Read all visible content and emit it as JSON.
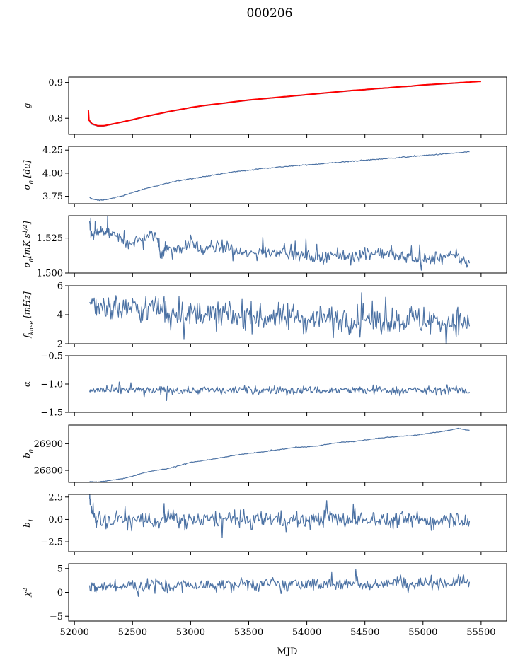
{
  "figure": {
    "title": "000206",
    "xlabel": "MJD",
    "x_ticks": [
      "52000",
      "52500",
      "53000",
      "53500",
      "54000",
      "54500",
      "55000",
      "55500"
    ],
    "x_tick_values": [
      52000,
      52500,
      53000,
      53500,
      54000,
      54500,
      55000,
      55500
    ],
    "xlim": [
      51950,
      55720
    ]
  },
  "colors": {
    "series": "#4c72a4",
    "overlay": "#ff0000",
    "axis": "#000000"
  },
  "chart_data": [
    {
      "type": "line",
      "ylabel": "g",
      "ylim": [
        0.755,
        0.915
      ],
      "y_ticks": [
        "0.8",
        "0.9"
      ],
      "y_tick_values": [
        0.8,
        0.9
      ],
      "series": [
        {
          "x": [
            52130,
            52150,
            52200,
            52250,
            52300,
            52400,
            52500,
            52600,
            52700,
            52800,
            52900,
            53000,
            53100,
            53200,
            53300,
            53400,
            53500,
            53600,
            53700,
            53800,
            53900,
            54000,
            54100,
            54200,
            54300,
            54400,
            54500,
            54600,
            54700,
            54800,
            54900,
            55000,
            55100,
            55200,
            55300,
            55400
          ],
          "y": [
            0.79,
            0.783,
            0.778,
            0.778,
            0.781,
            0.788,
            0.795,
            0.803,
            0.81,
            0.817,
            0.823,
            0.829,
            0.834,
            0.838,
            0.842,
            0.846,
            0.85,
            0.853,
            0.856,
            0.859,
            0.862,
            0.865,
            0.868,
            0.871,
            0.874,
            0.877,
            0.879,
            0.882,
            0.884,
            0.887,
            0.889,
            0.892,
            0.894,
            0.896,
            0.898,
            0.9
          ]
        },
        {
          "x": [
            52120,
            52125,
            52130,
            52150,
            52200,
            52250,
            52300,
            52400,
            52500,
            52600,
            52700,
            52800,
            52900,
            53000,
            53100,
            53200,
            53300,
            53400,
            53500,
            53600,
            53700,
            53800,
            53900,
            54000,
            54100,
            54200,
            54300,
            54400,
            54500,
            54600,
            54700,
            54800,
            54900,
            55000,
            55100,
            55200,
            55300,
            55400,
            55500
          ],
          "y": [
            0.822,
            0.795,
            0.793,
            0.785,
            0.779,
            0.779,
            0.782,
            0.789,
            0.796,
            0.804,
            0.811,
            0.818,
            0.824,
            0.83,
            0.835,
            0.839,
            0.843,
            0.847,
            0.851,
            0.854,
            0.857,
            0.86,
            0.863,
            0.866,
            0.869,
            0.872,
            0.875,
            0.878,
            0.88,
            0.883,
            0.885,
            0.888,
            0.89,
            0.893,
            0.895,
            0.897,
            0.899,
            0.901,
            0.903
          ]
        }
      ]
    },
    {
      "type": "line",
      "ylabel": "σ0 [du]",
      "ylim": [
        3.67,
        4.29
      ],
      "y_ticks": [
        "3.75",
        "4.00",
        "4.25"
      ],
      "y_tick_values": [
        3.75,
        4.0,
        4.25
      ],
      "series": [
        {
          "x": [
            52130,
            52150,
            52200,
            52250,
            52300,
            52400,
            52500,
            52600,
            52700,
            52800,
            52900,
            53000,
            53100,
            53200,
            53300,
            53400,
            53500,
            53600,
            53700,
            53800,
            53900,
            54000,
            54100,
            54200,
            54300,
            54400,
            54500,
            54600,
            54700,
            54800,
            54900,
            55000,
            55100,
            55200,
            55300,
            55400
          ],
          "y": [
            3.74,
            3.72,
            3.71,
            3.71,
            3.72,
            3.75,
            3.79,
            3.83,
            3.86,
            3.89,
            3.92,
            3.94,
            3.96,
            3.98,
            4.0,
            4.02,
            4.03,
            4.05,
            4.06,
            4.07,
            4.08,
            4.09,
            4.1,
            4.11,
            4.12,
            4.13,
            4.14,
            4.15,
            4.16,
            4.17,
            4.18,
            4.19,
            4.2,
            4.21,
            4.22,
            4.23
          ]
        }
      ]
    },
    {
      "type": "line",
      "ylabel": "σ0[mK s1/2]",
      "ylim": [
        1.5,
        1.541
      ],
      "y_ticks": [
        "1.500",
        "1.525"
      ],
      "y_tick_values": [
        1.5,
        1.525
      ],
      "series": [
        {
          "x": [
            52130,
            52150,
            52200,
            52250,
            52300,
            52400,
            52500,
            52600,
            52700,
            52750,
            52800,
            52900,
            53000,
            53100,
            53200,
            53300,
            53400,
            53500,
            53600,
            53700,
            53800,
            53900,
            54000,
            54100,
            54200,
            54300,
            54400,
            54500,
            54600,
            54700,
            54800,
            54900,
            55000,
            55100,
            55200,
            55300,
            55400
          ],
          "y": [
            1.535,
            1.526,
            1.529,
            1.53,
            1.528,
            1.524,
            1.522,
            1.525,
            1.527,
            1.514,
            1.518,
            1.517,
            1.522,
            1.516,
            1.518,
            1.519,
            1.515,
            1.513,
            1.516,
            1.514,
            1.518,
            1.512,
            1.513,
            1.51,
            1.514,
            1.511,
            1.513,
            1.513,
            1.515,
            1.514,
            1.511,
            1.512,
            1.508,
            1.511,
            1.512,
            1.511,
            1.507
          ]
        }
      ]
    },
    {
      "type": "line",
      "ylabel": "fknee [mHz]",
      "ylim": [
        2,
        6
      ],
      "y_ticks": [
        "2",
        "4",
        "6"
      ],
      "y_tick_values": [
        2,
        4,
        6
      ],
      "series": [
        {
          "x": [
            52130,
            52200,
            52300,
            52400,
            52500,
            52600,
            52700,
            52800,
            52900,
            53000,
            53100,
            53200,
            53300,
            53400,
            53500,
            53600,
            53700,
            53800,
            53900,
            54000,
            54100,
            54200,
            54300,
            54400,
            54500,
            54600,
            54700,
            54800,
            54900,
            55000,
            55100,
            55200,
            55300,
            55400
          ],
          "y": [
            4.8,
            4.7,
            4.6,
            4.4,
            4.5,
            4.2,
            4.6,
            4.1,
            4.3,
            3.9,
            4.2,
            3.9,
            4.1,
            3.8,
            4.0,
            3.7,
            3.9,
            3.8,
            3.9,
            3.6,
            3.9,
            3.7,
            3.8,
            3.6,
            3.9,
            3.5,
            3.7,
            3.6,
            3.8,
            3.5,
            3.6,
            3.4,
            3.6,
            3.2
          ]
        }
      ]
    },
    {
      "type": "line",
      "ylabel": "α",
      "ylim": [
        -1.5,
        -0.5
      ],
      "y_ticks": [
        "−1.5",
        "−1.0",
        "−0.5"
      ],
      "y_tick_values": [
        -1.5,
        -1.0,
        -0.5
      ],
      "series": [
        {
          "x": [
            52130,
            52200,
            52300,
            52400,
            52500,
            52600,
            52700,
            52800,
            52900,
            53000,
            53100,
            53200,
            53300,
            53400,
            53500,
            53600,
            53700,
            53800,
            53900,
            54000,
            54100,
            54200,
            54300,
            54400,
            54500,
            54600,
            54700,
            54800,
            54900,
            55000,
            55100,
            55200,
            55300,
            55400
          ],
          "y": [
            -1.12,
            -1.1,
            -1.12,
            -1.11,
            -1.1,
            -1.12,
            -1.13,
            -1.1,
            -1.11,
            -1.12,
            -1.1,
            -1.11,
            -1.12,
            -1.1,
            -1.11,
            -1.12,
            -1.1,
            -1.11,
            -1.12,
            -1.1,
            -1.11,
            -1.12,
            -1.1,
            -1.11,
            -1.12,
            -1.1,
            -1.11,
            -1.12,
            -1.1,
            -1.11,
            -1.12,
            -1.1,
            -1.11,
            -1.14
          ]
        }
      ]
    },
    {
      "type": "line",
      "ylabel": "b0",
      "ylim": [
        26755,
        26970
      ],
      "y_ticks": [
        "26800",
        "26900"
      ],
      "y_tick_values": [
        26800,
        26900
      ],
      "series": [
        {
          "x": [
            52130,
            52150,
            52200,
            52300,
            52400,
            52500,
            52600,
            52700,
            52800,
            52900,
            53000,
            53100,
            53200,
            53300,
            53400,
            53500,
            53600,
            53700,
            53800,
            53900,
            54000,
            54100,
            54200,
            54300,
            54400,
            54500,
            54600,
            54700,
            54800,
            54900,
            55000,
            55100,
            55200,
            55300,
            55400
          ],
          "y": [
            26758,
            26757,
            26756,
            26762,
            26768,
            26778,
            26792,
            26800,
            26806,
            26818,
            26830,
            26836,
            26843,
            26850,
            26858,
            26864,
            26868,
            26874,
            26880,
            26886,
            26888,
            26892,
            26900,
            26906,
            26908,
            26914,
            26920,
            26924,
            26928,
            26930,
            26936,
            26942,
            26948,
            26958,
            26950
          ]
        }
      ]
    },
    {
      "type": "line",
      "ylabel": "b1",
      "ylim": [
        -3.6,
        2.8
      ],
      "y_ticks": [
        "−2.5",
        "0.0",
        "2.5"
      ],
      "y_tick_values": [
        -2.5,
        0,
        2.5
      ],
      "series": [
        {
          "x": [
            52130,
            52150,
            52200,
            52300,
            52400,
            52500,
            52600,
            52700,
            52800,
            52900,
            53000,
            53100,
            53200,
            53300,
            53400,
            53500,
            53600,
            53700,
            53800,
            53900,
            54000,
            54100,
            54200,
            54300,
            54400,
            54500,
            54600,
            54700,
            54800,
            54900,
            55000,
            55100,
            55200,
            55300,
            55400
          ],
          "y": [
            2.3,
            0.8,
            0.1,
            -0.3,
            0.2,
            -0.2,
            0.1,
            -0.4,
            0.2,
            -0.1,
            0.0,
            -0.3,
            0.2,
            -0.1,
            0.1,
            -0.2,
            0.0,
            0.2,
            -0.1,
            0.1,
            -0.2,
            0.0,
            0.3,
            -0.2,
            0.1,
            -0.1,
            0.2,
            -0.3,
            0.1,
            -0.1,
            0.0,
            -0.3,
            0.3,
            0.1,
            -0.2
          ]
        }
      ]
    },
    {
      "type": "line",
      "ylabel": "χ2",
      "ylim": [
        -6,
        6
      ],
      "y_ticks": [
        "−5",
        "0",
        "5"
      ],
      "y_tick_values": [
        -5,
        0,
        5
      ],
      "series": [
        {
          "x": [
            52130,
            52200,
            52300,
            52400,
            52500,
            52600,
            52700,
            52800,
            52900,
            53000,
            53100,
            53200,
            53300,
            53400,
            53500,
            53600,
            53700,
            53800,
            53900,
            54000,
            54100,
            54200,
            54300,
            54400,
            54500,
            54600,
            54700,
            54800,
            54900,
            55000,
            55100,
            55200,
            55300,
            55400
          ],
          "y": [
            0.6,
            1.0,
            1.4,
            1.0,
            1.5,
            1.2,
            1.8,
            1.0,
            1.4,
            1.6,
            1.2,
            1.8,
            1.4,
            1.6,
            2.0,
            1.5,
            1.8,
            1.2,
            1.6,
            2.0,
            1.4,
            1.8,
            1.6,
            2.2,
            1.5,
            2.0,
            1.8,
            2.4,
            1.6,
            2.0,
            2.2,
            1.8,
            2.4,
            2.2
          ]
        }
      ]
    }
  ]
}
